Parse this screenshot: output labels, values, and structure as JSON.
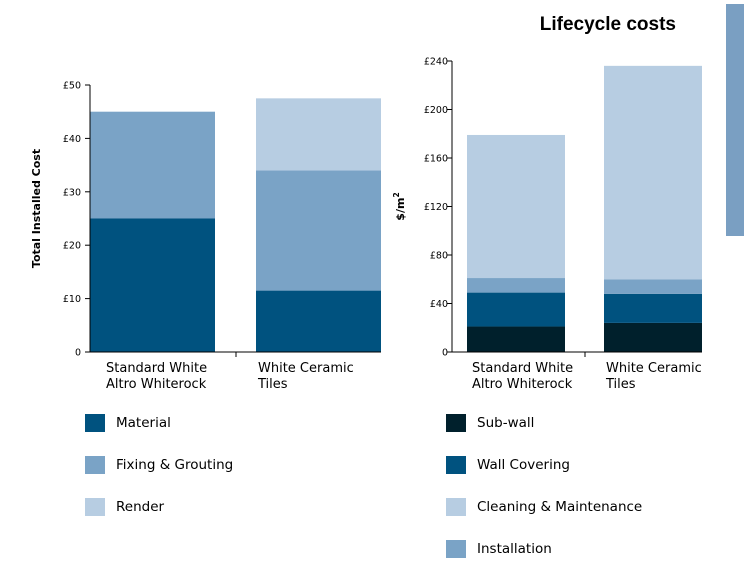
{
  "title": "Lifecycle costs",
  "chart_data": [
    {
      "type": "bar",
      "stacked": true,
      "categories": [
        [
          "Standard White",
          "Altro Whiterock"
        ],
        [
          "White Ceramic",
          "Tiles"
        ]
      ],
      "ylabel": "Total Installed Cost",
      "ylim": [
        0,
        50
      ],
      "yticks": [
        0,
        10,
        20,
        30,
        40,
        50
      ],
      "ytick_labels": [
        "0",
        "£10",
        "£20",
        "£30",
        "£40",
        "£50"
      ],
      "series": [
        {
          "name": "Material",
          "color": "#00527f",
          "values": [
            25,
            11.5
          ]
        },
        {
          "name": "Fixing & Grouting",
          "color": "#7aa3c6",
          "values": [
            20,
            22.5
          ]
        },
        {
          "name": "Render",
          "color": "#b7cde2",
          "values": [
            0,
            13.5
          ]
        }
      ]
    },
    {
      "type": "bar",
      "stacked": true,
      "categories": [
        [
          "Standard White",
          "Altro Whiterock"
        ],
        [
          "White Ceramic",
          "Tiles"
        ]
      ],
      "ylabel": "$/m",
      "ylabel_superscript": "2",
      "ylim": [
        0,
        240
      ],
      "yticks": [
        0,
        40,
        80,
        120,
        160,
        200,
        240
      ],
      "ytick_labels": [
        "0",
        "£40",
        "£80",
        "£120",
        "£160",
        "£200",
        "£240"
      ],
      "series": [
        {
          "name": "Sub-wall",
          "color": "#00202c",
          "values": [
            21,
            24
          ]
        },
        {
          "name": "Wall Covering",
          "color": "#00527f",
          "values": [
            28,
            24
          ]
        },
        {
          "name": "Installation",
          "color": "#7aa3c6",
          "values": [
            12,
            12
          ]
        },
        {
          "name": "Cleaning & Maintenance",
          "color": "#b7cde2",
          "values": [
            118,
            176
          ]
        }
      ],
      "legend_order": [
        "Sub-wall",
        "Wall Covering",
        "Cleaning & Maintenance",
        "Installation"
      ]
    }
  ]
}
